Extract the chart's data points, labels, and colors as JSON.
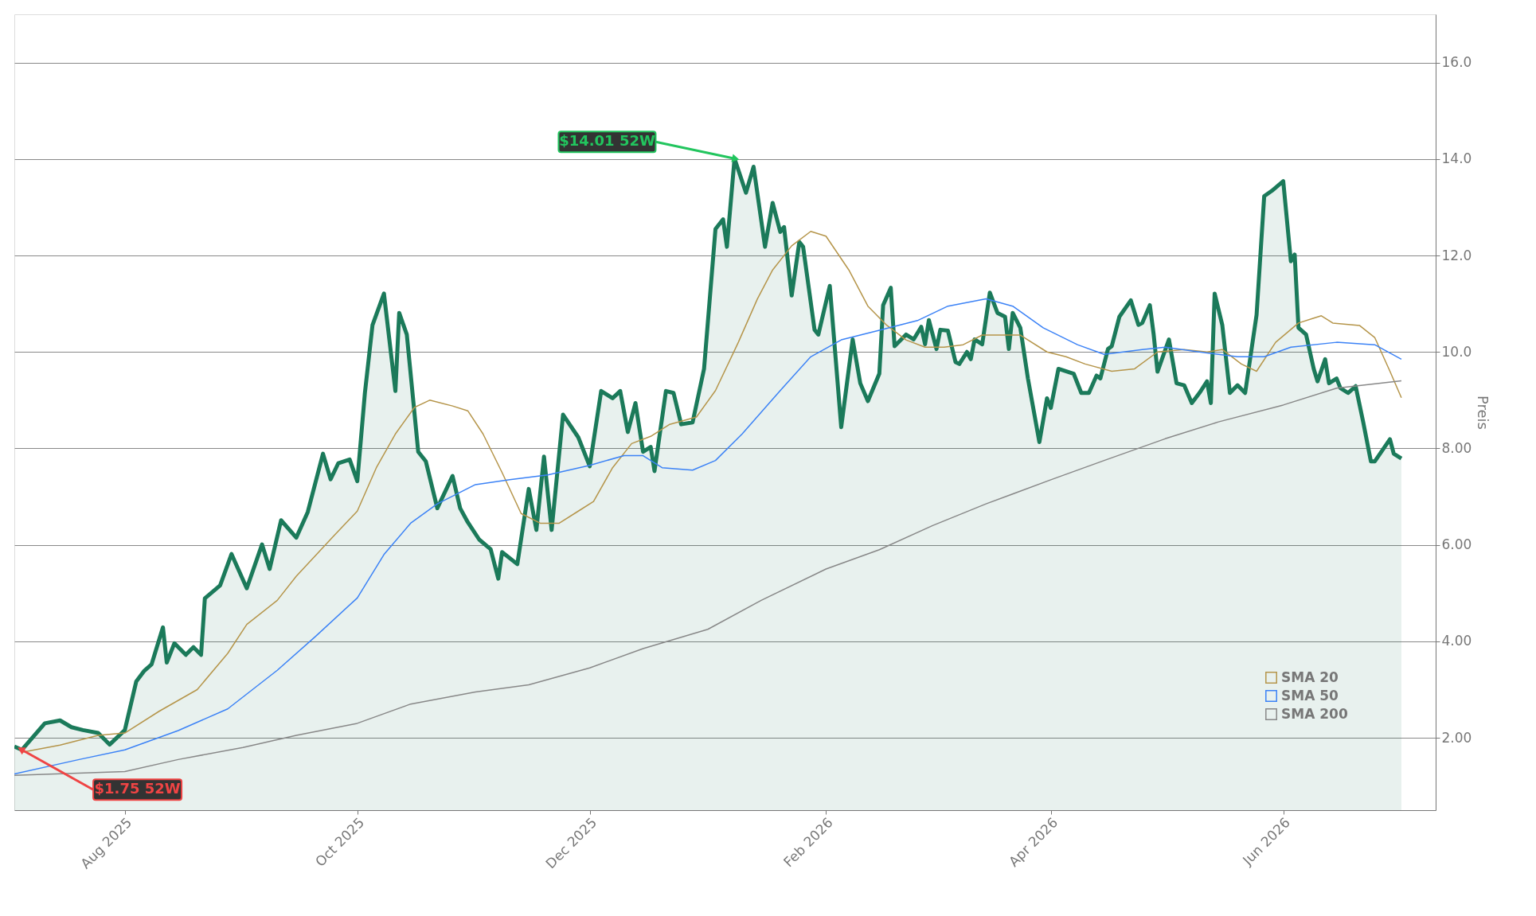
{
  "chart_data": {
    "type": "line",
    "ylabel": "Preis",
    "xlim": [
      "2025-07-03",
      "2026-07-11"
    ],
    "xticks": [
      {
        "value": "2025-08-01",
        "label": "Aug 2025"
      },
      {
        "value": "2025-10-01",
        "label": "Oct 2025"
      },
      {
        "value": "2025-12-01",
        "label": "Dec 2025"
      },
      {
        "value": "2026-02-01",
        "label": "Feb 2026"
      },
      {
        "value": "2026-04-01",
        "label": "Apr 2026"
      },
      {
        "value": "2026-06-01",
        "label": "Jun 2026"
      }
    ],
    "ylim": [
      0.5,
      17
    ],
    "yticks": [
      {
        "value": 2,
        "label": "2.00"
      },
      {
        "value": 4,
        "label": "4.00"
      },
      {
        "value": 6,
        "label": "6.00"
      },
      {
        "value": 8,
        "label": "8.00"
      },
      {
        "value": 10,
        "label": "10.0"
      },
      {
        "value": 12,
        "label": "12.0"
      },
      {
        "value": 14,
        "label": "14.0"
      },
      {
        "value": 16,
        "label": "16.0"
      }
    ],
    "grid": "y",
    "legend": "bottom right",
    "marker": "none",
    "annotations": [
      {
        "text": "$14.01 52W",
        "x": "2026-01-08",
        "y": 14.01
      },
      {
        "text": "$1.75 52W",
        "x": "2025-07-05",
        "y": 1.75
      }
    ],
    "series": [
      {
        "type": "area",
        "color": "#1b7a5a",
        "x": [
          "2025-07-03",
          "2025-07-05",
          "2025-07-11",
          "2025-07-15",
          "2025-07-18",
          "2025-07-21",
          "2025-07-25",
          "2025-07-28",
          "2025-08-01",
          "2025-08-04",
          "2025-08-06",
          "2025-08-08",
          "2025-08-11",
          "2025-08-12",
          "2025-08-14",
          "2025-08-17",
          "2025-08-19",
          "2025-08-21",
          "2025-08-22",
          "2025-08-26",
          "2025-08-29",
          "2025-09-02",
          "2025-09-06",
          "2025-09-08",
          "2025-09-11",
          "2025-09-15",
          "2025-09-18",
          "2025-09-22",
          "2025-09-24",
          "2025-09-26",
          "2025-09-29",
          "2025-10-01",
          "2025-10-03",
          "2025-10-05",
          "2025-10-08",
          "2025-10-11",
          "2025-10-12",
          "2025-10-14",
          "2025-10-17",
          "2025-10-19",
          "2025-10-22",
          "2025-10-26",
          "2025-10-28",
          "2025-10-30",
          "2025-11-02",
          "2025-11-05",
          "2025-11-07",
          "2025-11-08",
          "2025-11-12",
          "2025-11-15",
          "2025-11-17",
          "2025-11-19",
          "2025-11-21",
          "2025-11-24",
          "2025-11-28",
          "2025-12-01",
          "2025-12-04",
          "2025-12-07",
          "2025-12-09",
          "2025-12-11",
          "2025-12-13",
          "2025-12-15",
          "2025-12-17",
          "2025-12-18",
          "2025-12-21",
          "2025-12-23",
          "2025-12-25",
          "2025-12-28",
          "2025-12-31",
          "2026-01-03",
          "2026-01-05",
          "2026-01-06",
          "2026-01-08",
          "2026-01-11",
          "2026-01-13",
          "2026-01-16",
          "2026-01-18",
          "2026-01-20",
          "2026-01-21",
          "2026-01-23",
          "2026-01-25",
          "2026-01-26",
          "2026-01-29",
          "2026-01-30",
          "2026-02-02",
          "2026-02-05",
          "2026-02-08",
          "2026-02-10",
          "2026-02-12",
          "2026-02-15",
          "2026-02-16",
          "2026-02-18",
          "2026-02-19",
          "2026-02-22",
          "2026-02-24",
          "2026-02-26",
          "2026-02-27",
          "2026-02-28",
          "2026-03-02",
          "2026-03-03",
          "2026-03-05",
          "2026-03-07",
          "2026-03-08",
          "2026-03-10",
          "2026-03-11",
          "2026-03-12",
          "2026-03-14",
          "2026-03-16",
          "2026-03-18",
          "2026-03-20",
          "2026-03-21",
          "2026-03-22",
          "2026-03-24",
          "2026-03-26",
          "2026-03-29",
          "2026-03-31",
          "2026-04-01",
          "2026-04-03",
          "2026-04-07",
          "2026-04-09",
          "2026-04-11",
          "2026-04-13",
          "2026-04-14",
          "2026-04-16",
          "2026-04-17",
          "2026-04-19",
          "2026-04-22",
          "2026-04-24",
          "2026-04-25",
          "2026-04-27",
          "2026-04-28",
          "2026-04-29",
          "2026-05-02",
          "2026-05-04",
          "2026-05-06",
          "2026-05-08",
          "2026-05-10",
          "2026-05-12",
          "2026-05-13",
          "2026-05-14",
          "2026-05-16",
          "2026-05-18",
          "2026-05-20",
          "2026-05-22",
          "2026-05-25",
          "2026-05-27",
          "2026-05-29",
          "2026-06-01",
          "2026-06-03",
          "2026-06-04",
          "2026-06-05",
          "2026-06-07",
          "2026-06-09",
          "2026-06-10",
          "2026-06-12",
          "2026-06-13",
          "2026-06-15",
          "2026-06-16",
          "2026-06-18",
          "2026-06-20",
          "2026-06-22",
          "2026-06-24",
          "2026-06-25",
          "2026-06-29",
          "2026-06-30",
          "2026-07-02"
        ],
        "values": [
          1.82,
          1.75,
          2.3,
          2.36,
          2.22,
          2.16,
          2.1,
          1.86,
          2.16,
          3.17,
          3.38,
          3.52,
          4.29,
          3.56,
          3.96,
          3.72,
          3.88,
          3.72,
          4.89,
          5.16,
          5.81,
          5.1,
          6.01,
          5.5,
          6.51,
          6.15,
          6.68,
          7.89,
          7.36,
          7.69,
          7.77,
          7.32,
          9.15,
          10.56,
          11.21,
          9.19,
          10.81,
          10.36,
          7.93,
          7.73,
          6.76,
          7.43,
          6.76,
          6.47,
          6.11,
          5.91,
          5.3,
          5.85,
          5.6,
          7.16,
          6.31,
          7.83,
          6.31,
          8.7,
          8.23,
          7.63,
          9.19,
          9.04,
          9.19,
          8.34,
          8.94,
          7.93,
          8.03,
          7.53,
          9.19,
          9.15,
          8.5,
          8.54,
          9.65,
          12.55,
          12.75,
          12.18,
          14.01,
          13.3,
          13.84,
          12.18,
          13.09,
          12.49,
          12.59,
          11.17,
          12.28,
          12.18,
          10.46,
          10.36,
          11.37,
          8.44,
          10.26,
          9.35,
          8.98,
          9.55,
          10.97,
          11.33,
          10.12,
          10.36,
          10.26,
          10.52,
          10.16,
          10.66,
          10.06,
          10.46,
          10.44,
          9.79,
          9.75,
          10.0,
          9.85,
          10.26,
          10.16,
          11.23,
          10.81,
          10.73,
          10.06,
          10.81,
          10.5,
          9.45,
          8.13,
          9.04,
          8.84,
          9.65,
          9.55,
          9.15,
          9.15,
          9.51,
          9.45,
          10.06,
          10.12,
          10.73,
          11.07,
          10.56,
          10.6,
          10.97,
          10.36,
          9.59,
          10.26,
          9.35,
          9.31,
          8.94,
          9.15,
          9.39,
          8.94,
          11.21,
          10.56,
          9.15,
          9.31,
          9.15,
          10.77,
          13.23,
          13.34,
          13.54,
          11.88,
          12.02,
          10.5,
          10.36,
          9.65,
          9.39,
          9.85,
          9.35,
          9.45,
          9.25,
          9.15,
          9.29,
          8.54,
          7.73,
          7.73,
          8.19,
          7.89,
          7.79
        ]
      },
      {
        "name": "SMA 20",
        "color": "#b5954a",
        "x": [
          "2025-07-05",
          "2025-07-15",
          "2025-07-25",
          "2025-08-01",
          "2025-08-10",
          "2025-08-20",
          "2025-08-28",
          "2025-09-02",
          "2025-09-10",
          "2025-09-15",
          "2025-09-25",
          "2025-10-01",
          "2025-10-06",
          "2025-10-11",
          "2025-10-16",
          "2025-10-20",
          "2025-10-26",
          "2025-10-30",
          "2025-11-03",
          "2025-11-08",
          "2025-11-13",
          "2025-11-18",
          "2025-11-23",
          "2025-11-28",
          "2025-12-02",
          "2025-12-07",
          "2025-12-12",
          "2025-12-17",
          "2025-12-22",
          "2025-12-29",
          "2026-01-03",
          "2026-01-09",
          "2026-01-14",
          "2026-01-18",
          "2026-01-23",
          "2026-01-28",
          "2026-02-01",
          "2026-02-07",
          "2026-02-12",
          "2026-02-17",
          "2026-02-22",
          "2026-02-27",
          "2026-03-04",
          "2026-03-09",
          "2026-03-14",
          "2026-03-19",
          "2026-03-24",
          "2026-03-31",
          "2026-04-05",
          "2026-04-10",
          "2026-04-17",
          "2026-04-23",
          "2026-04-29",
          "2026-05-06",
          "2026-05-12",
          "2026-05-16",
          "2026-05-21",
          "2026-05-25",
          "2026-05-30",
          "2026-06-05",
          "2026-06-09",
          "2026-06-11",
          "2026-06-14",
          "2026-06-21",
          "2026-06-25",
          "2026-06-29",
          "2026-07-02"
        ],
        "values": [
          1.7,
          1.85,
          2.05,
          2.1,
          2.55,
          3.0,
          3.75,
          4.35,
          4.85,
          5.35,
          6.2,
          6.7,
          7.6,
          8.3,
          8.85,
          9.0,
          8.88,
          8.78,
          8.3,
          7.5,
          6.65,
          6.45,
          6.45,
          6.7,
          6.9,
          7.6,
          8.1,
          8.25,
          8.5,
          8.65,
          9.2,
          10.2,
          11.1,
          11.7,
          12.2,
          12.5,
          12.4,
          11.7,
          10.95,
          10.55,
          10.25,
          10.1,
          10.1,
          10.15,
          10.35,
          10.35,
          10.35,
          10.0,
          9.9,
          9.75,
          9.6,
          9.65,
          10.0,
          10.05,
          10.0,
          10.05,
          9.75,
          9.6,
          10.2,
          10.6,
          10.7,
          10.75,
          10.6,
          10.55,
          10.3,
          9.6,
          9.05
        ]
      },
      {
        "name": "SMA 50",
        "color": "#3b82f6",
        "x": [
          "2025-07-03",
          "2025-07-20",
          "2025-08-01",
          "2025-08-15",
          "2025-08-28",
          "2025-09-10",
          "2025-09-20",
          "2025-10-01",
          "2025-10-08",
          "2025-10-15",
          "2025-10-22",
          "2025-11-01",
          "2025-11-10",
          "2025-11-20",
          "2025-12-01",
          "2025-12-10",
          "2025-12-15",
          "2025-12-20",
          "2025-12-28",
          "2026-01-03",
          "2026-01-10",
          "2026-01-20",
          "2026-01-28",
          "2026-02-05",
          "2026-02-15",
          "2026-02-25",
          "2026-03-05",
          "2026-03-15",
          "2026-03-22",
          "2026-03-30",
          "2026-04-08",
          "2026-04-15",
          "2026-04-25",
          "2026-05-01",
          "2026-05-10",
          "2026-05-20",
          "2026-05-27",
          "2026-06-03",
          "2026-06-15",
          "2026-06-25",
          "2026-07-02"
        ],
        "values": [
          1.25,
          1.55,
          1.75,
          2.15,
          2.6,
          3.4,
          4.1,
          4.9,
          5.8,
          6.45,
          6.85,
          7.25,
          7.35,
          7.45,
          7.65,
          7.85,
          7.85,
          7.6,
          7.55,
          7.75,
          8.3,
          9.2,
          9.9,
          10.25,
          10.45,
          10.65,
          10.95,
          11.1,
          10.95,
          10.5,
          10.15,
          9.95,
          10.05,
          10.1,
          10.0,
          9.9,
          9.9,
          10.1,
          10.2,
          10.15,
          9.85
        ]
      },
      {
        "name": "SMA 200",
        "color": "#888888",
        "x": [
          "2025-07-03",
          "2025-08-01",
          "2025-08-15",
          "2025-09-01",
          "2025-09-15",
          "2025-10-01",
          "2025-10-15",
          "2025-11-01",
          "2025-11-15",
          "2025-12-01",
          "2025-12-15",
          "2026-01-01",
          "2026-01-15",
          "2026-02-01",
          "2026-02-15",
          "2026-03-01",
          "2026-03-15",
          "2026-04-01",
          "2026-04-15",
          "2026-05-01",
          "2026-05-15",
          "2026-06-01",
          "2026-06-15",
          "2026-07-02"
        ],
        "values": [
          1.22,
          1.3,
          1.55,
          1.8,
          2.05,
          2.3,
          2.7,
          2.95,
          3.1,
          3.45,
          3.85,
          4.25,
          4.85,
          5.5,
          5.9,
          6.4,
          6.85,
          7.35,
          7.75,
          8.2,
          8.55,
          8.9,
          9.25,
          9.4
        ]
      }
    ]
  }
}
